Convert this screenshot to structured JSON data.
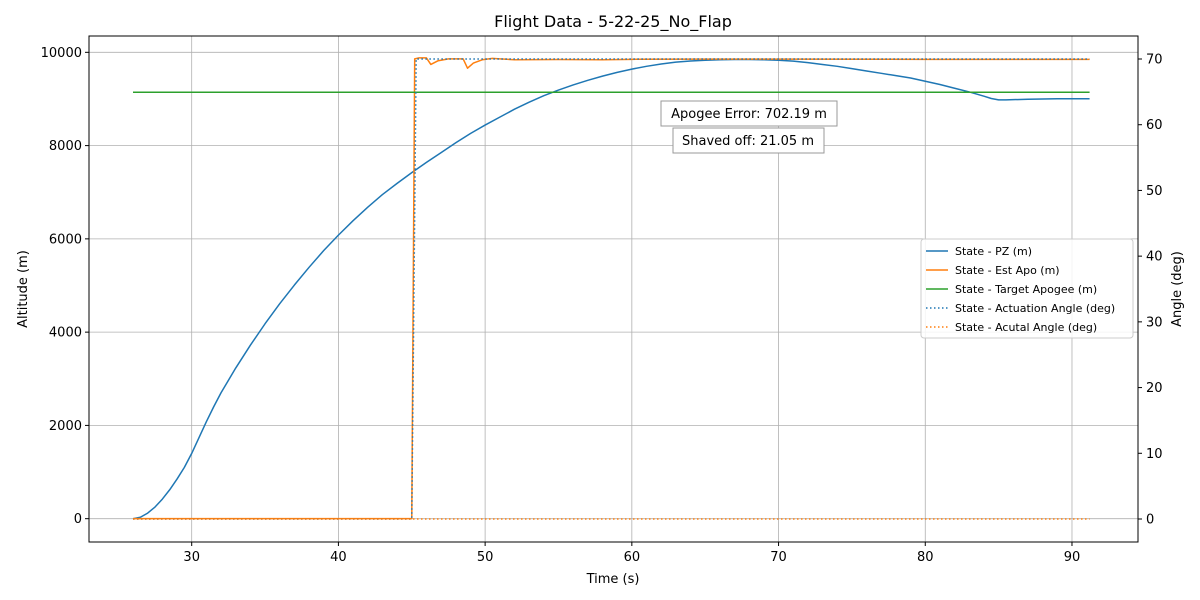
{
  "chart_data": {
    "type": "line",
    "title": "Flight Data - 5-22-25_No_Flap",
    "xlabel": "Time (s)",
    "ylabel": "Altitude (m)",
    "y2label": "Angle (deg)",
    "xlim": [
      23,
      94.5
    ],
    "ylim": [
      -500,
      10350
    ],
    "y2lim": [
      -3.5,
      73.5
    ],
    "xticks": [
      30,
      40,
      50,
      60,
      70,
      80,
      90
    ],
    "yticks": [
      0,
      2000,
      4000,
      6000,
      8000,
      10000
    ],
    "y2ticks": [
      0,
      10,
      20,
      30,
      40,
      50,
      60,
      70
    ],
    "grid": true,
    "legend_position": "center-right",
    "annotations": [
      "Apogee Error: 702.19 m",
      "Shaved off: 21.05 m"
    ],
    "series": [
      {
        "name": "State - PZ (m)",
        "axis": "left",
        "style": "solid",
        "color": "#1f77b4",
        "x": [
          26,
          26.5,
          27,
          27.5,
          28,
          28.5,
          29,
          29.5,
          30,
          30.5,
          31,
          31.5,
          32,
          33,
          34,
          35,
          36,
          37,
          38,
          39,
          40,
          41,
          42,
          43,
          44,
          45,
          46,
          47,
          48,
          49,
          50,
          51,
          52,
          53,
          54,
          55,
          56,
          57,
          58,
          59,
          60,
          61,
          62,
          63,
          64,
          65,
          66,
          67,
          68,
          69,
          70,
          71,
          72,
          73,
          74,
          75,
          76,
          77,
          78,
          79,
          80,
          81,
          82,
          83,
          84,
          84.5,
          85,
          85.5,
          86,
          87,
          88,
          89,
          90,
          91.2
        ],
        "values": [
          0,
          30,
          120,
          250,
          420,
          620,
          850,
          1100,
          1400,
          1740,
          2080,
          2400,
          2700,
          3230,
          3720,
          4180,
          4610,
          5010,
          5390,
          5750,
          6080,
          6390,
          6680,
          6950,
          7190,
          7420,
          7640,
          7850,
          8060,
          8260,
          8440,
          8610,
          8780,
          8930,
          9070,
          9190,
          9300,
          9400,
          9490,
          9570,
          9640,
          9700,
          9750,
          9790,
          9815,
          9830,
          9840,
          9845,
          9845,
          9840,
          9830,
          9810,
          9780,
          9740,
          9700,
          9650,
          9600,
          9550,
          9500,
          9450,
          9380,
          9310,
          9230,
          9150,
          9060,
          9010,
          8980,
          8980,
          8985,
          8995,
          9000,
          9005,
          9005,
          9005
        ]
      },
      {
        "name": "State - Est Apo (m)",
        "axis": "left",
        "style": "solid",
        "color": "#ff7f0e",
        "x": [
          26,
          45,
          45.2,
          45.5,
          46,
          46.3,
          46.8,
          47.5,
          48.5,
          48.8,
          49.2,
          49.8,
          50.5,
          51,
          52,
          55,
          58,
          60,
          65,
          70,
          80,
          91.2
        ],
        "values": [
          0,
          0,
          9860,
          9880,
          9880,
          9740,
          9820,
          9860,
          9860,
          9660,
          9770,
          9840,
          9870,
          9860,
          9840,
          9845,
          9840,
          9850,
          9855,
          9855,
          9850,
          9850
        ]
      },
      {
        "name": "State - Target Apogee (m)",
        "axis": "left",
        "style": "solid",
        "color": "#2ca02c",
        "x": [
          26,
          91.2
        ],
        "values": [
          9144,
          9144
        ]
      },
      {
        "name": "State - Actuation Angle (deg)",
        "axis": "right",
        "style": "dotted",
        "color": "#1f77b4",
        "x": [
          26,
          45,
          45.3,
          91.2
        ],
        "values": [
          0,
          0,
          70,
          70
        ]
      },
      {
        "name": "State - Acutal Angle (deg)",
        "axis": "right",
        "style": "dotted",
        "color": "#ff7f0e",
        "x": [
          26,
          91.2
        ],
        "values": [
          0,
          0
        ]
      }
    ]
  }
}
